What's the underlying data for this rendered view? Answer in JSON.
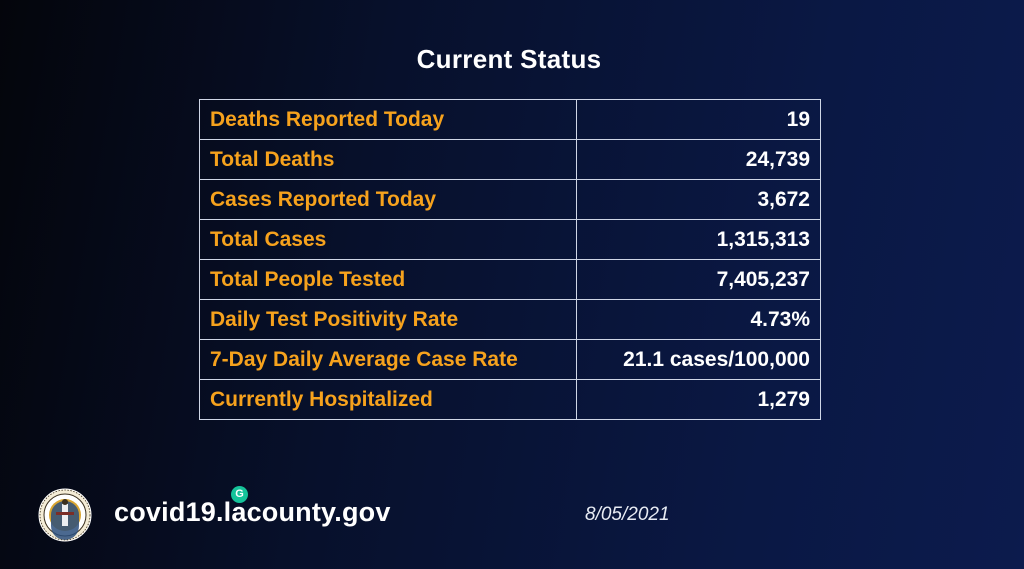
{
  "title": "Current Status",
  "rows": [
    {
      "label": "Deaths Reported Today",
      "value": "19"
    },
    {
      "label": "Total Deaths",
      "value": "24,739"
    },
    {
      "label": "Cases Reported Today",
      "value": "3,672"
    },
    {
      "label": "Total Cases",
      "value": "1,315,313"
    },
    {
      "label": "Total People Tested",
      "value": "7,405,237"
    },
    {
      "label": "Daily Test Positivity Rate",
      "value": "4.73%"
    },
    {
      "label": "7-Day Daily Average Case Rate",
      "value": "21.1 cases/100,000"
    },
    {
      "label": "Currently Hospitalized",
      "value": "1,279"
    }
  ],
  "footer": {
    "url": "covid19.lacounty.gov",
    "date": "8/05/2021",
    "seal_icon": "county-seal-icon",
    "badge_icon": "grammarly-icon",
    "badge_letter": "G",
    "seal_text": "COUNTY OF LOS ANGELES CALIFORNIA"
  },
  "colors": {
    "label": "#f6a21d",
    "value": "#ffffff",
    "background": "#0a1844",
    "border": "#cfd6e6"
  }
}
